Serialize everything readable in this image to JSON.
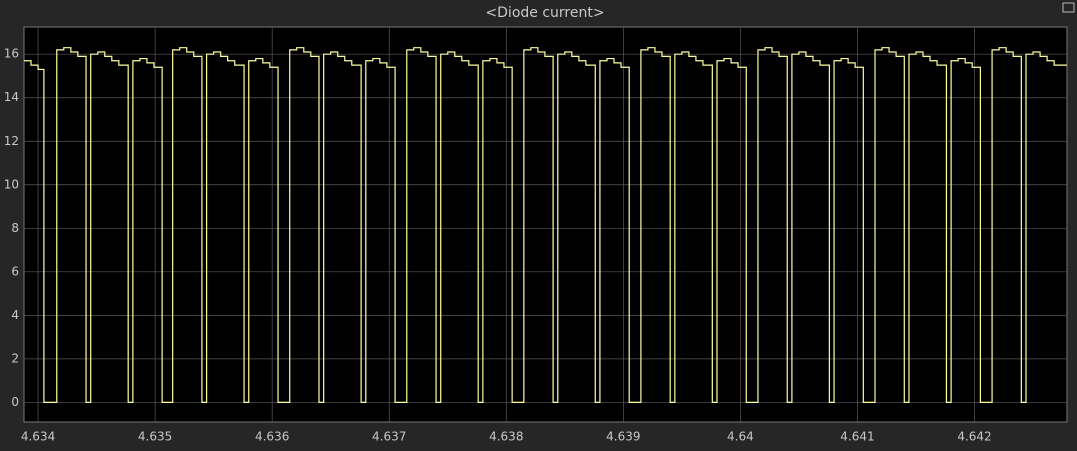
{
  "chart_data": {
    "type": "line",
    "title": "<Diode current>",
    "step": true,
    "grid": true,
    "xlim": [
      4.63388,
      4.64279
    ],
    "ylim": [
      -0.9,
      17.25
    ],
    "xticks": [
      4.634,
      4.635,
      4.636,
      4.637,
      4.638,
      4.639,
      4.64,
      4.641,
      4.642
    ],
    "yticks": [
      0,
      2,
      4,
      6,
      8,
      10,
      12,
      14,
      16
    ],
    "series": [
      {
        "color": "#ffffa0",
        "x": [
          4.63388,
          4.63394,
          4.634,
          4.63405,
          4.63416,
          4.63422,
          4.63428,
          4.63434,
          4.63441,
          4.63445,
          4.63451,
          4.63457,
          4.63463,
          4.63469,
          4.63477,
          4.63481,
          4.63487,
          4.63493,
          4.63499,
          4.63506,
          4.63515,
          4.63521,
          4.63527,
          4.63533,
          4.6354,
          4.63544,
          4.6355,
          4.63556,
          4.63562,
          4.63568,
          4.63576,
          4.6358,
          4.63586,
          4.63592,
          4.63598,
          4.63605,
          4.63615,
          4.63621,
          4.63627,
          4.63633,
          4.6364,
          4.63644,
          4.6365,
          4.63656,
          4.63662,
          4.63668,
          4.63676,
          4.6368,
          4.63686,
          4.63692,
          4.63698,
          4.63705,
          4.63715,
          4.63721,
          4.63727,
          4.63733,
          4.6374,
          4.63744,
          4.6375,
          4.63756,
          4.63762,
          4.63768,
          4.63776,
          4.6378,
          4.63786,
          4.63792,
          4.63798,
          4.63805,
          4.63815,
          4.63821,
          4.63827,
          4.63833,
          4.6384,
          4.63844,
          4.6385,
          4.63856,
          4.63862,
          4.63868,
          4.63876,
          4.6388,
          4.63886,
          4.63892,
          4.63898,
          4.63905,
          4.63915,
          4.63921,
          4.63927,
          4.63933,
          4.6394,
          4.63944,
          4.6395,
          4.63956,
          4.63962,
          4.63968,
          4.63976,
          4.6398,
          4.63986,
          4.63992,
          4.63998,
          4.64005,
          4.64015,
          4.64021,
          4.64027,
          4.64033,
          4.6404,
          4.64044,
          4.6405,
          4.64056,
          4.64062,
          4.64068,
          4.64076,
          4.6408,
          4.64086,
          4.64092,
          4.64098,
          4.64105,
          4.64115,
          4.64121,
          4.64127,
          4.64133,
          4.6414,
          4.64144,
          4.6415,
          4.64156,
          4.64162,
          4.64168,
          4.64176,
          4.6418,
          4.64186,
          4.64192,
          4.64198,
          4.64205,
          4.64215,
          4.64221,
          4.64227,
          4.64233,
          4.6424,
          4.64244,
          4.6425,
          4.64256,
          4.64262,
          4.64268,
          4.64279
        ],
        "values": [
          15.7,
          15.5,
          15.3,
          0,
          16.2,
          16.3,
          16.1,
          15.9,
          0,
          16.0,
          16.1,
          15.9,
          15.7,
          15.5,
          0,
          15.7,
          15.8,
          15.6,
          15.4,
          0,
          16.2,
          16.3,
          16.1,
          15.9,
          0,
          16.0,
          16.1,
          15.9,
          15.7,
          15.5,
          0,
          15.7,
          15.8,
          15.6,
          15.4,
          0,
          16.2,
          16.3,
          16.1,
          15.9,
          0,
          16.0,
          16.1,
          15.9,
          15.7,
          15.5,
          0,
          15.7,
          15.8,
          15.6,
          15.4,
          0,
          16.2,
          16.3,
          16.1,
          15.9,
          0,
          16.0,
          16.1,
          15.9,
          15.7,
          15.5,
          0,
          15.7,
          15.8,
          15.6,
          15.4,
          0,
          16.2,
          16.3,
          16.1,
          15.9,
          0,
          16.0,
          16.1,
          15.9,
          15.7,
          15.5,
          0,
          15.7,
          15.8,
          15.6,
          15.4,
          0,
          16.2,
          16.3,
          16.1,
          15.9,
          0,
          16.0,
          16.1,
          15.9,
          15.7,
          15.5,
          0,
          15.7,
          15.8,
          15.6,
          15.4,
          0,
          16.2,
          16.3,
          16.1,
          15.9,
          0,
          16.0,
          16.1,
          15.9,
          15.7,
          15.5,
          0,
          15.7,
          15.8,
          15.6,
          15.4,
          0,
          16.2,
          16.3,
          16.1,
          15.9,
          0,
          16.0,
          16.1,
          15.9,
          15.7,
          15.5,
          0,
          15.7,
          15.8,
          15.6,
          15.4,
          0,
          16.2,
          16.3,
          16.1,
          15.9,
          0,
          16.0,
          16.1,
          15.9,
          15.7,
          15.5,
          15.5
        ]
      }
    ]
  }
}
